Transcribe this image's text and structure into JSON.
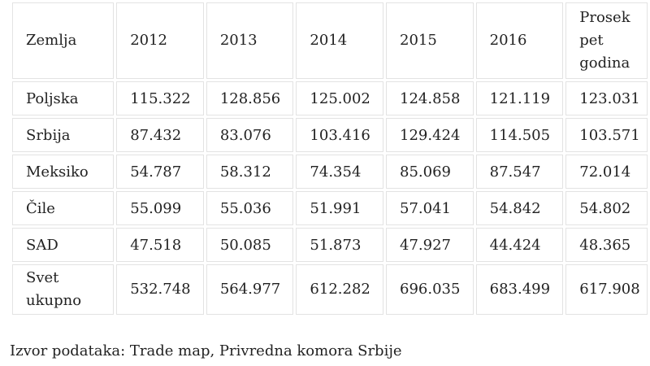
{
  "table": {
    "headers": [
      "Zemlja",
      "2012",
      "2013",
      "2014",
      "2015",
      "2016",
      "Prosek pet godina"
    ],
    "rows": [
      [
        "Poljska",
        "115.322",
        "128.856",
        "125.002",
        "124.858",
        "121.119",
        "123.031"
      ],
      [
        "Srbija",
        "87.432",
        "83.076",
        "103.416",
        "129.424",
        "114.505",
        "103.571"
      ],
      [
        "Meksiko",
        "54.787",
        "58.312",
        "74.354",
        "85.069",
        "87.547",
        "72.014"
      ],
      [
        "Čile",
        "55.099",
        "55.036",
        "51.991",
        "57.041",
        "54.842",
        "54.802"
      ],
      [
        "SAD",
        "47.518",
        "50.085",
        "51.873",
        "47.927",
        "44.424",
        "48.365"
      ],
      [
        "Svet ukupno",
        "532.748",
        "564.977",
        "612.282",
        "696.035",
        "683.499",
        "617.908"
      ]
    ]
  },
  "caption": "Izvor podataka: Trade map, Privredna komora Srbije"
}
